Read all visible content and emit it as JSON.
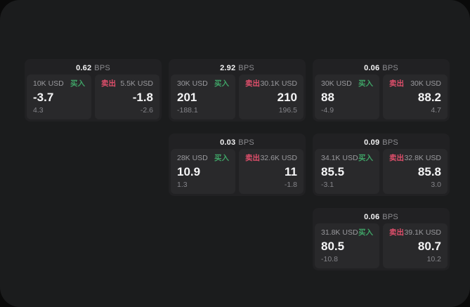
{
  "page": {
    "background": "#0a0a0a",
    "panel_background": "#1b1c1d"
  },
  "colors": {
    "buy_green": "#3fa266",
    "sell_red": "#e04f6b",
    "text_primary": "#f2f2f3",
    "text_secondary": "#8b8b8f",
    "card_background": "#212123",
    "tile_background": "#29292b"
  },
  "labels": {
    "buy": "买入",
    "sell": "卖出",
    "bps_unit": "BPS"
  },
  "cards": [
    {
      "bps": "0.62",
      "buy": {
        "size": "10K USD",
        "price": "-3.7",
        "delta": "4.3"
      },
      "sell": {
        "size": "5.5K USD",
        "price": "-1.8",
        "delta": "-2.6"
      }
    },
    {
      "bps": "2.92",
      "buy": {
        "size": "30K USD",
        "price": "201",
        "delta": "-188.1"
      },
      "sell": {
        "size": "30.1K USD",
        "price": "210",
        "delta": "196.5"
      }
    },
    {
      "bps": "0.06",
      "buy": {
        "size": "30K USD",
        "price": "88",
        "delta": "-4.9"
      },
      "sell": {
        "size": "30K USD",
        "price": "88.2",
        "delta": "4.7"
      }
    },
    {
      "bps": "0.03",
      "buy": {
        "size": "28K USD",
        "price": "10.9",
        "delta": "1.3"
      },
      "sell": {
        "size": "32.6K USD",
        "price": "11",
        "delta": "-1.8"
      }
    },
    {
      "bps": "0.09",
      "buy": {
        "size": "34.1K USD",
        "price": "85.5",
        "delta": "-3.1"
      },
      "sell": {
        "size": "32.8K USD",
        "price": "85.8",
        "delta": "3.0"
      }
    },
    {
      "bps": "0.06",
      "buy": {
        "size": "31.8K USD",
        "price": "80.5",
        "delta": "-10.8"
      },
      "sell": {
        "size": "39.1K USD",
        "price": "80.7",
        "delta": "10.2"
      }
    }
  ]
}
